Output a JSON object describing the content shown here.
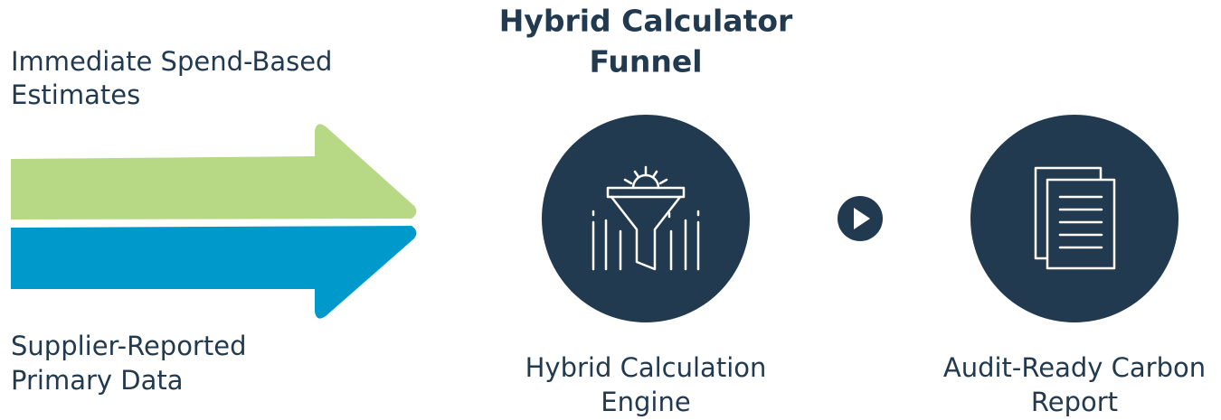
{
  "title": [
    "Hybrid Calculator",
    "Funnel"
  ],
  "inputs": [
    {
      "label": [
        "Immediate Spend-Based",
        "Estimates"
      ]
    },
    {
      "label": [
        "Supplier-Reported",
        "Primary Data"
      ]
    }
  ],
  "steps": [
    {
      "label": [
        "Hybrid Calculation",
        "Engine"
      ]
    },
    {
      "label": [
        "Audit-Ready Carbon",
        "Report"
      ]
    }
  ]
}
